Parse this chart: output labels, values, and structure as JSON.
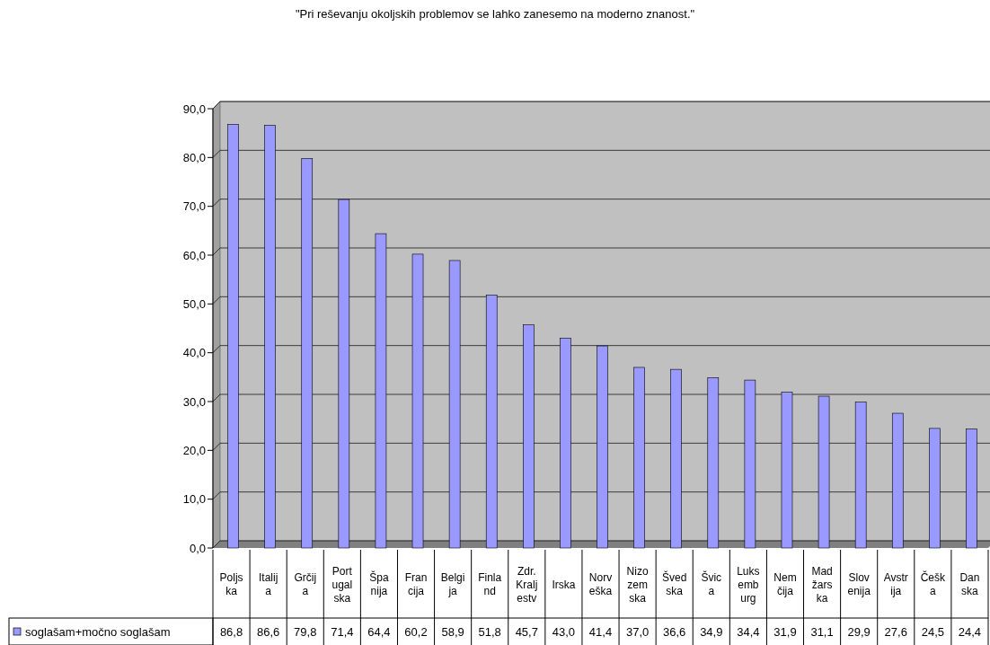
{
  "chart_data": {
    "type": "bar",
    "title": "\"Pri reševanju okoljskih problemov se lahko zanesemo na moderno znanost.\"",
    "categories": [
      "Poljska",
      "Italija",
      "Grčija",
      "Portugalska",
      "Španija",
      "Francija",
      "Belgija",
      "Finland",
      "Zdr. Kraljestv",
      "Irska",
      "Norveška",
      "Nizozemska",
      "Švedska",
      "Švica",
      "Luksemburg",
      "Nemčija",
      "Madžarska",
      "Slovenija",
      "Avstrija",
      "Češka",
      "Danska"
    ],
    "series": [
      {
        "name": "soglašam+močno soglašam",
        "color": "#9999ff",
        "values": [
          86.8,
          86.6,
          79.8,
          71.4,
          64.4,
          60.2,
          58.9,
          51.8,
          45.7,
          43.0,
          41.4,
          37.0,
          36.6,
          34.9,
          34.4,
          31.9,
          31.1,
          29.9,
          27.6,
          24.5,
          24.4
        ],
        "value_labels": [
          "86,8",
          "86,6",
          "79,8",
          "71,4",
          "64,4",
          "60,2",
          "58,9",
          "51,8",
          "45,7",
          "43,0",
          "41,4",
          "37,0",
          "36,6",
          "34,9",
          "34,4",
          "31,9",
          "31,1",
          "29,9",
          "27,6",
          "24,5",
          "24,4"
        ]
      }
    ],
    "ylim": [
      0,
      90
    ],
    "yticks": [
      {
        "value": 0,
        "label": "0,0"
      },
      {
        "value": 10,
        "label": "10,0"
      },
      {
        "value": 20,
        "label": "20,0"
      },
      {
        "value": 30,
        "label": "30,0"
      },
      {
        "value": 40,
        "label": "40,0"
      },
      {
        "value": 50,
        "label": "50,0"
      },
      {
        "value": 60,
        "label": "60,0"
      },
      {
        "value": 70,
        "label": "70,0"
      },
      {
        "value": 80,
        "label": "80,0"
      },
      {
        "value": 90,
        "label": "90,0"
      }
    ],
    "grid": "y",
    "legend": "bottom"
  }
}
